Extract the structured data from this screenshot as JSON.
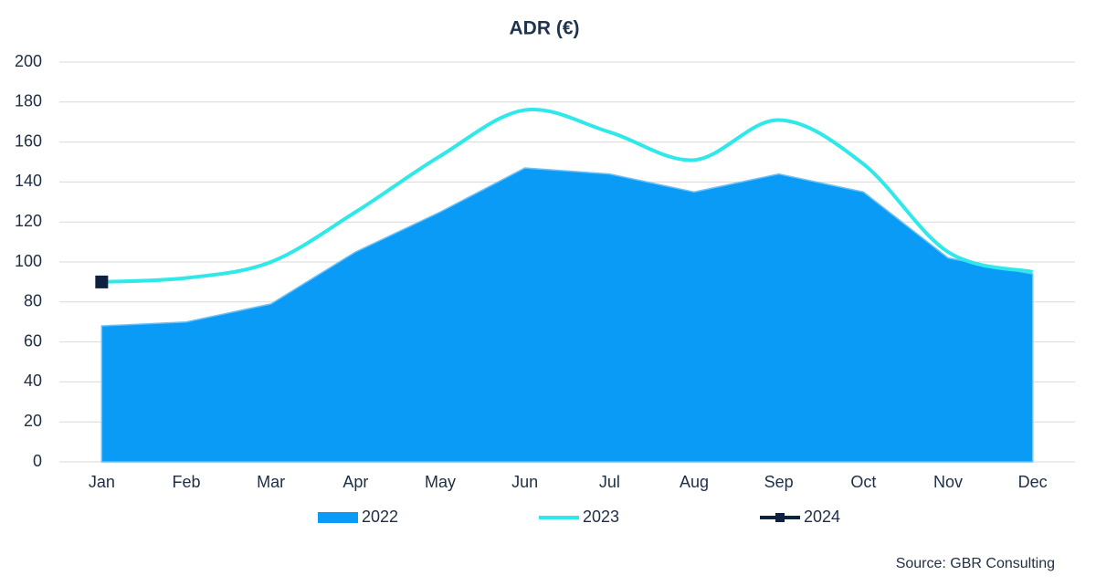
{
  "chart_data": {
    "type": "line",
    "title": "ADR (€)",
    "categories": [
      "Jan",
      "Feb",
      "Mar",
      "Apr",
      "May",
      "Jun",
      "Jul",
      "Aug",
      "Sep",
      "Oct",
      "Nov",
      "Dec"
    ],
    "series": [
      {
        "name": "2022",
        "kind": "area",
        "color": "#0a9bf7",
        "values": [
          68,
          70,
          79,
          105,
          125,
          147,
          144,
          135,
          144,
          135,
          102,
          94
        ]
      },
      {
        "name": "2023",
        "kind": "smooth",
        "color": "#2ee8ea",
        "values": [
          90,
          92,
          100,
          125,
          153,
          176,
          165,
          151,
          171,
          149,
          105,
          95
        ]
      },
      {
        "name": "2024",
        "kind": "marker",
        "color": "#0d2240",
        "values": [
          90,
          null,
          null,
          null,
          null,
          null,
          null,
          null,
          null,
          null,
          null,
          null
        ]
      }
    ],
    "ylim": [
      0,
      200
    ],
    "yticks": [
      0,
      20,
      40,
      60,
      80,
      100,
      120,
      140,
      160,
      180,
      200
    ],
    "grid": true,
    "legend": "bottom",
    "source": "Source: GBR Consulting"
  }
}
